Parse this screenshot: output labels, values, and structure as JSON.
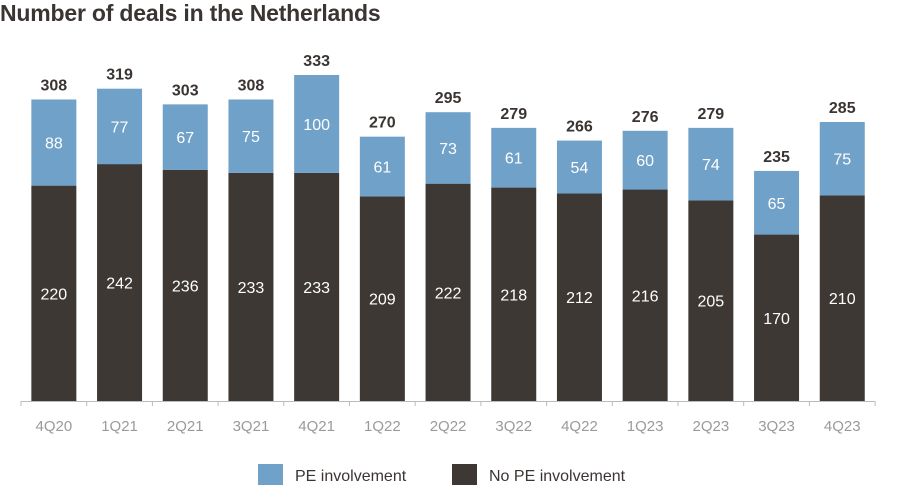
{
  "chart_data": {
    "type": "bar",
    "stacked": true,
    "title": "Number of deals in the Netherlands",
    "categories": [
      "4Q20",
      "1Q21",
      "2Q21",
      "3Q21",
      "4Q21",
      "1Q22",
      "2Q22",
      "3Q22",
      "4Q22",
      "1Q23",
      "2Q23",
      "3Q23",
      "4Q23"
    ],
    "series": [
      {
        "name": "No PE involvement",
        "color": "#3d3834",
        "values": [
          220,
          242,
          236,
          233,
          233,
          209,
          222,
          218,
          212,
          216,
          205,
          170,
          210
        ]
      },
      {
        "name": "PE involvement",
        "color": "#6fa1c9",
        "values": [
          88,
          77,
          67,
          75,
          100,
          61,
          73,
          61,
          54,
          60,
          74,
          65,
          75
        ]
      }
    ],
    "totals": [
      308,
      319,
      303,
      308,
      333,
      270,
      295,
      279,
      266,
      276,
      279,
      235,
      285
    ],
    "xlabel": "",
    "ylabel": "",
    "ylim": [
      0,
      333
    ],
    "grid": false,
    "legend": "bottom"
  }
}
